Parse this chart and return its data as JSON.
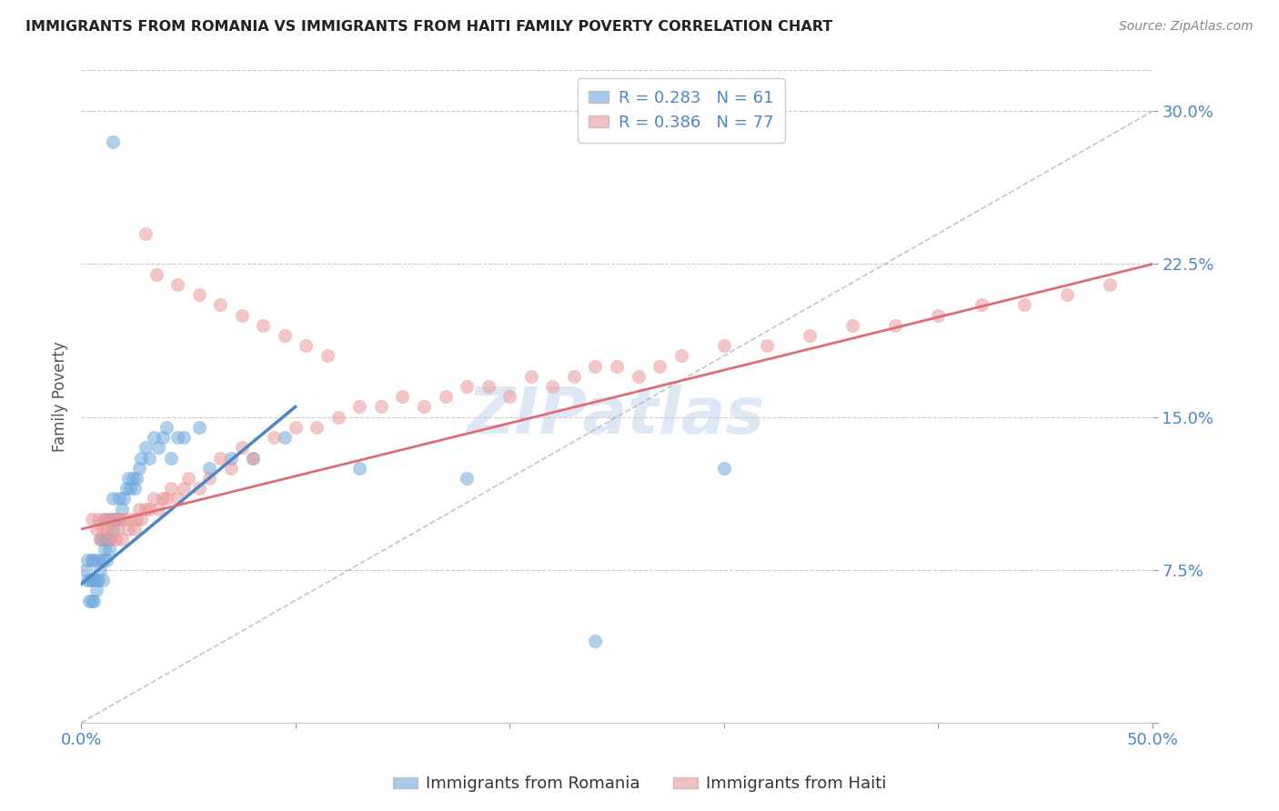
{
  "title": "IMMIGRANTS FROM ROMANIA VS IMMIGRANTS FROM HAITI FAMILY POVERTY CORRELATION CHART",
  "source": "Source: ZipAtlas.com",
  "ylabel": "Family Poverty",
  "x_ticks": [
    0.0,
    0.1,
    0.2,
    0.3,
    0.4,
    0.5
  ],
  "y_ticks": [
    0.0,
    0.075,
    0.15,
    0.225,
    0.3
  ],
  "y_tick_labels": [
    "",
    "7.5%",
    "15.0%",
    "22.5%",
    "30.0%"
  ],
  "xlim": [
    0.0,
    0.5
  ],
  "ylim": [
    0.0,
    0.32
  ],
  "romania_R": 0.283,
  "romania_N": 61,
  "haiti_R": 0.386,
  "haiti_N": 77,
  "romania_color": "#6fa8dc",
  "haiti_color": "#ea9999",
  "romania_line_color": "#4a86c8",
  "haiti_line_color": "#e06c75",
  "diagonal_color": "#aaaaaa",
  "tick_label_color": "#4a86c8",
  "watermark_color": "#c8d8f0",
  "romania_x": [
    0.002,
    0.003,
    0.003,
    0.004,
    0.004,
    0.005,
    0.005,
    0.005,
    0.006,
    0.006,
    0.006,
    0.007,
    0.007,
    0.008,
    0.008,
    0.009,
    0.009,
    0.01,
    0.01,
    0.01,
    0.011,
    0.011,
    0.012,
    0.012,
    0.013,
    0.013,
    0.014,
    0.015,
    0.015,
    0.016,
    0.017,
    0.018,
    0.019,
    0.02,
    0.021,
    0.022,
    0.023,
    0.024,
    0.025,
    0.026,
    0.027,
    0.028,
    0.03,
    0.032,
    0.034,
    0.036,
    0.038,
    0.04,
    0.042,
    0.045,
    0.048,
    0.055,
    0.06,
    0.07,
    0.08,
    0.095,
    0.13,
    0.18,
    0.24,
    0.3,
    0.015
  ],
  "romania_y": [
    0.075,
    0.08,
    0.07,
    0.07,
    0.06,
    0.08,
    0.07,
    0.06,
    0.08,
    0.07,
    0.06,
    0.065,
    0.07,
    0.07,
    0.08,
    0.09,
    0.075,
    0.08,
    0.09,
    0.07,
    0.1,
    0.085,
    0.09,
    0.08,
    0.085,
    0.09,
    0.1,
    0.11,
    0.095,
    0.1,
    0.1,
    0.11,
    0.105,
    0.11,
    0.115,
    0.12,
    0.115,
    0.12,
    0.115,
    0.12,
    0.125,
    0.13,
    0.135,
    0.13,
    0.14,
    0.135,
    0.14,
    0.145,
    0.13,
    0.14,
    0.14,
    0.145,
    0.125,
    0.13,
    0.13,
    0.14,
    0.125,
    0.12,
    0.04,
    0.125,
    0.285
  ],
  "haiti_x": [
    0.005,
    0.007,
    0.008,
    0.009,
    0.01,
    0.011,
    0.012,
    0.013,
    0.014,
    0.015,
    0.016,
    0.017,
    0.018,
    0.019,
    0.02,
    0.022,
    0.023,
    0.025,
    0.026,
    0.027,
    0.028,
    0.03,
    0.032,
    0.034,
    0.036,
    0.038,
    0.04,
    0.042,
    0.045,
    0.048,
    0.05,
    0.055,
    0.06,
    0.065,
    0.07,
    0.075,
    0.08,
    0.09,
    0.1,
    0.11,
    0.12,
    0.13,
    0.14,
    0.15,
    0.16,
    0.17,
    0.18,
    0.19,
    0.2,
    0.21,
    0.22,
    0.23,
    0.24,
    0.25,
    0.26,
    0.27,
    0.28,
    0.3,
    0.32,
    0.34,
    0.36,
    0.38,
    0.4,
    0.42,
    0.44,
    0.46,
    0.48,
    0.03,
    0.035,
    0.045,
    0.055,
    0.065,
    0.075,
    0.085,
    0.095,
    0.105,
    0.115
  ],
  "haiti_y": [
    0.1,
    0.095,
    0.1,
    0.09,
    0.095,
    0.1,
    0.095,
    0.1,
    0.09,
    0.1,
    0.09,
    0.095,
    0.1,
    0.09,
    0.1,
    0.095,
    0.1,
    0.095,
    0.1,
    0.105,
    0.1,
    0.105,
    0.105,
    0.11,
    0.105,
    0.11,
    0.11,
    0.115,
    0.11,
    0.115,
    0.12,
    0.115,
    0.12,
    0.13,
    0.125,
    0.135,
    0.13,
    0.14,
    0.145,
    0.145,
    0.15,
    0.155,
    0.155,
    0.16,
    0.155,
    0.16,
    0.165,
    0.165,
    0.16,
    0.17,
    0.165,
    0.17,
    0.175,
    0.175,
    0.17,
    0.175,
    0.18,
    0.185,
    0.185,
    0.19,
    0.195,
    0.195,
    0.2,
    0.205,
    0.205,
    0.21,
    0.215,
    0.24,
    0.22,
    0.215,
    0.21,
    0.205,
    0.2,
    0.195,
    0.19,
    0.185,
    0.18
  ],
  "romania_line_x": [
    0.0,
    0.1
  ],
  "romania_line_y_start": 0.068,
  "romania_line_y_end": 0.155,
  "haiti_line_x": [
    0.0,
    0.5
  ],
  "haiti_line_y_start": 0.095,
  "haiti_line_y_end": 0.225
}
